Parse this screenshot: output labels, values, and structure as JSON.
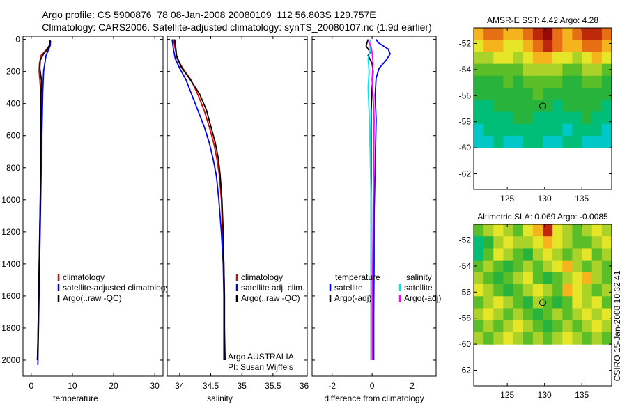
{
  "header": {
    "line1": "Argo profile: CS 5900876_78 08-Jan-2008 20080109_112 56.803S 129.757E",
    "line2": "Climatology: CARS2006. Satellite-adjusted climatology: synTS_20080107.nc (1.9d earlier)"
  },
  "colors": {
    "red": "#e00000",
    "blue": "#0000ff",
    "black": "#000000",
    "cyan": "#00e5ee",
    "magenta": "#ff00ff"
  },
  "chart_data": [
    {
      "id": "temp",
      "type": "line",
      "xlabel": "temperature",
      "ylabel": "",
      "xlim": [
        -2,
        32
      ],
      "ylim": [
        2100,
        -20
      ],
      "reverse_y": true,
      "xticks": [
        0,
        10,
        20,
        30
      ],
      "xtick_labels": [
        "0",
        "10",
        "20",
        "30"
      ],
      "yticks": [
        0,
        200,
        400,
        600,
        800,
        1000,
        1200,
        1400,
        1600,
        1800,
        2000
      ],
      "ytick_labels": [
        "0",
        "200",
        "400",
        "600",
        "800",
        "1000",
        "1200",
        "1400",
        "1600",
        "1800",
        "2000"
      ],
      "legend": [
        "climatology",
        "satellite-adjusted climatology",
        "Argo(..raw -QC)"
      ],
      "series": [
        {
          "name": "climatology",
          "color": "red",
          "points": [
            [
              4.5,
              10
            ],
            [
              4.4,
              40
            ],
            [
              3.5,
              70
            ],
            [
              2.4,
              100
            ],
            [
              2,
              150
            ],
            [
              1.9,
              200
            ],
            [
              2.1,
              250
            ],
            [
              2.3,
              330
            ],
            [
              2.4,
              450
            ],
            [
              2.3,
              700
            ],
            [
              2.2,
              1000
            ],
            [
              2.0,
              1300
            ],
            [
              1.8,
              1600
            ],
            [
              1.6,
              1900
            ],
            [
              1.5,
              2000
            ]
          ]
        },
        {
          "name": "satellite-adjusted climatology",
          "color": "blue",
          "points": [
            [
              4.7,
              10
            ],
            [
              4.6,
              40
            ],
            [
              4.1,
              70
            ],
            [
              3.6,
              100
            ],
            [
              3.3,
              150
            ],
            [
              3.0,
              200
            ],
            [
              2.9,
              260
            ],
            [
              2.8,
              330
            ],
            [
              2.7,
              450
            ],
            [
              2.5,
              700
            ],
            [
              2.3,
              1000
            ],
            [
              2.1,
              1300
            ],
            [
              1.9,
              1600
            ],
            [
              1.7,
              1900
            ],
            [
              1.6,
              2030
            ]
          ]
        },
        {
          "name": "Argo(..raw -QC)",
          "color": "black",
          "points": [
            [
              4.6,
              5
            ],
            [
              4.5,
              30
            ],
            [
              4.0,
              60
            ],
            [
              3.0,
              90
            ],
            [
              2.2,
              130
            ],
            [
              2.1,
              180
            ],
            [
              2.3,
              220
            ],
            [
              2.5,
              260
            ],
            [
              2.4,
              330
            ],
            [
              2.4,
              450
            ],
            [
              2.3,
              700
            ],
            [
              2.2,
              1000
            ],
            [
              2.0,
              1300
            ],
            [
              1.8,
              1600
            ],
            [
              1.6,
              1900
            ],
            [
              1.5,
              2000
            ]
          ]
        }
      ]
    },
    {
      "id": "sal",
      "type": "line",
      "xlabel": "salinity",
      "ylabel": "",
      "xlim": [
        33.8,
        36.05
      ],
      "ylim": [
        2100,
        -20
      ],
      "reverse_y": true,
      "xticks": [
        34,
        34.5,
        35,
        35.5,
        36
      ],
      "xtick_labels": [
        "34",
        "34.5",
        "35",
        "35.5",
        "36"
      ],
      "legend": [
        "climatology",
        "satellite adj. clim.",
        "Argo(..raw -QC)"
      ],
      "annotation": [
        "Argo AUSTRALIA",
        "PI: Susan Wijffels"
      ],
      "series": [
        {
          "name": "climatology",
          "color": "red",
          "points": [
            [
              33.9,
              0
            ],
            [
              33.93,
              60
            ],
            [
              33.96,
              120
            ],
            [
              34.05,
              180
            ],
            [
              34.18,
              250
            ],
            [
              34.3,
              350
            ],
            [
              34.4,
              450
            ],
            [
              34.48,
              550
            ],
            [
              34.55,
              650
            ],
            [
              34.6,
              750
            ],
            [
              34.64,
              850
            ],
            [
              34.67,
              1000
            ],
            [
              34.69,
              1200
            ],
            [
              34.71,
              1400
            ],
            [
              34.72,
              1600
            ],
            [
              34.72,
              1800
            ],
            [
              34.72,
              2000
            ]
          ]
        },
        {
          "name": "satellite adj. clim.",
          "color": "blue",
          "points": [
            [
              33.88,
              0
            ],
            [
              33.9,
              60
            ],
            [
              33.93,
              120
            ],
            [
              34.0,
              180
            ],
            [
              34.1,
              250
            ],
            [
              34.2,
              350
            ],
            [
              34.3,
              450
            ],
            [
              34.4,
              550
            ],
            [
              34.48,
              650
            ],
            [
              34.54,
              750
            ],
            [
              34.59,
              850
            ],
            [
              34.63,
              1000
            ],
            [
              34.67,
              1200
            ],
            [
              34.7,
              1400
            ],
            [
              34.71,
              1600
            ],
            [
              34.71,
              1800
            ],
            [
              34.71,
              2000
            ]
          ]
        },
        {
          "name": "Argo(..raw -QC)",
          "color": "black",
          "points": [
            [
              33.92,
              0
            ],
            [
              33.94,
              60
            ],
            [
              33.95,
              100
            ],
            [
              34.02,
              170
            ],
            [
              34.15,
              240
            ],
            [
              34.32,
              340
            ],
            [
              34.43,
              440
            ],
            [
              34.5,
              540
            ],
            [
              34.57,
              640
            ],
            [
              34.62,
              740
            ],
            [
              34.65,
              840
            ],
            [
              34.68,
              1000
            ],
            [
              34.7,
              1200
            ],
            [
              34.71,
              1400
            ],
            [
              34.72,
              1600
            ],
            [
              34.72,
              1800
            ],
            [
              34.73,
              2000
            ]
          ]
        }
      ]
    },
    {
      "id": "diff",
      "type": "line",
      "xlabel": "difference from climatology",
      "ylabel": "",
      "xlim": [
        -3,
        3.2
      ],
      "ylim": [
        2100,
        -20
      ],
      "reverse_y": true,
      "xticks": [
        -2,
        0,
        2
      ],
      "xtick_labels": [
        "-2",
        "0",
        "2"
      ],
      "legend_left": [
        "temperature",
        "satellite",
        "Argo(-adj)"
      ],
      "legend_right": [
        "salinity",
        "satellite",
        "Argo(-adj)"
      ],
      "series": [
        {
          "name": "temperature satellite",
          "color": "blue",
          "points": [
            [
              0.2,
              0
            ],
            [
              0.3,
              20
            ],
            [
              0.8,
              60
            ],
            [
              0.9,
              90
            ],
            [
              0.7,
              130
            ],
            [
              0.35,
              180
            ],
            [
              0.2,
              240
            ],
            [
              0.15,
              350
            ],
            [
              0.2,
              500
            ],
            [
              0.15,
              800
            ],
            [
              0.1,
              1100
            ],
            [
              0.1,
              1400
            ],
            [
              0.08,
              1700
            ],
            [
              0.08,
              2000
            ]
          ]
        },
        {
          "name": "temperature Argo(-adj)",
          "color": "black",
          "points": [
            [
              -0.2,
              0
            ],
            [
              -0.3,
              40
            ],
            [
              -0.1,
              80
            ],
            [
              -0.2,
              100
            ],
            [
              0.0,
              150
            ],
            [
              0.05,
              200
            ],
            [
              0.0,
              300
            ],
            [
              -0.05,
              450
            ],
            [
              -0.05,
              700
            ],
            [
              -0.05,
              1000
            ],
            [
              -0.05,
              1300
            ],
            [
              -0.05,
              1600
            ],
            [
              -0.05,
              1900
            ],
            [
              -0.05,
              2000
            ]
          ]
        },
        {
          "name": "salinity satellite",
          "color": "cyan",
          "points": [
            [
              -0.1,
              0
            ],
            [
              -0.1,
              60
            ],
            [
              -0.2,
              120
            ],
            [
              -0.15,
              200
            ],
            [
              -0.2,
              300
            ],
            [
              -0.15,
              450
            ],
            [
              -0.1,
              700
            ],
            [
              -0.05,
              1000
            ],
            [
              -0.05,
              1300
            ],
            [
              -0.02,
              1600
            ],
            [
              -0.02,
              2000
            ]
          ]
        },
        {
          "name": "salinity Argo(-adj)",
          "color": "magenta",
          "points": [
            [
              -0.2,
              10
            ],
            [
              -0.05,
              50
            ],
            [
              0.0,
              80
            ],
            [
              0.05,
              150
            ],
            [
              0.0,
              250
            ],
            [
              0.05,
              350
            ],
            [
              0.1,
              500
            ],
            [
              0.07,
              800
            ],
            [
              0.05,
              1100
            ],
            [
              0.03,
              1400
            ],
            [
              0.02,
              1700
            ],
            [
              0.02,
              2000
            ]
          ]
        }
      ]
    },
    {
      "id": "sst",
      "type": "heatmap",
      "title": "AMSR-E SST: 4.42 Argo: 4.28",
      "xlim": [
        120.5,
        139
      ],
      "ylim": [
        -63.2,
        -50.8
      ],
      "xticks": [
        125,
        130,
        135
      ],
      "xtick_labels": [
        "125",
        "130",
        "135"
      ],
      "yticks": [
        -52,
        -54,
        -56,
        -58,
        -60,
        -62
      ],
      "ytick_labels": [
        "-52",
        "-54",
        "-56",
        "-58",
        "-60",
        "-62"
      ],
      "data_lat_range": [
        -60,
        -50.8
      ],
      "float_position": [
        129.757,
        -56.803
      ],
      "grid": [
        [
          6,
          7,
          7,
          6,
          6,
          7,
          8,
          9,
          7,
          6,
          7,
          8,
          8,
          7
        ],
        [
          5,
          6,
          6,
          5,
          5,
          6,
          7,
          8,
          7,
          6,
          6,
          7,
          7,
          6
        ],
        [
          4,
          4,
          5,
          5,
          4,
          5,
          6,
          6,
          5,
          5,
          4,
          5,
          6,
          5
        ],
        [
          3,
          3,
          3,
          3,
          3,
          4,
          4,
          4,
          4,
          3,
          3,
          4,
          4,
          3
        ],
        [
          2,
          2,
          2,
          3,
          2,
          3,
          3,
          3,
          3,
          2,
          2,
          3,
          3,
          2
        ],
        [
          2,
          2,
          2,
          2,
          2,
          2,
          3,
          2,
          2,
          2,
          2,
          2,
          2,
          2
        ],
        [
          1,
          1,
          2,
          2,
          2,
          2,
          2,
          2,
          1,
          2,
          2,
          2,
          2,
          1
        ],
        [
          1,
          1,
          1,
          1,
          2,
          2,
          1,
          1,
          1,
          1,
          1,
          2,
          1,
          1
        ],
        [
          0,
          1,
          1,
          1,
          1,
          1,
          1,
          1,
          1,
          0,
          1,
          1,
          1,
          0
        ],
        [
          0,
          0,
          1,
          0,
          0,
          1,
          1,
          0,
          0,
          1,
          1,
          0,
          0,
          0
        ]
      ]
    },
    {
      "id": "sla",
      "type": "heatmap",
      "title": "Altimetric SLA: 0.069 Argo: -0.0085",
      "xlim": [
        120.5,
        139
      ],
      "ylim": [
        -63.2,
        -50.8
      ],
      "xticks": [
        125,
        130,
        135
      ],
      "xtick_labels": [
        "125",
        "130",
        "135"
      ],
      "yticks": [
        -52,
        -54,
        -56,
        -58,
        -60,
        -62
      ],
      "ytick_labels": [
        "-52",
        "-54",
        "-56",
        "-58",
        "-60",
        "-62"
      ],
      "data_lat_range": [
        -60,
        -50.8
      ],
      "float_position": [
        129.757,
        -56.803
      ],
      "grid": [
        [
          3,
          4,
          5,
          4,
          3,
          5,
          6,
          8,
          5,
          4,
          3,
          4,
          5,
          4
        ],
        [
          1,
          2,
          4,
          5,
          4,
          4,
          5,
          6,
          5,
          4,
          3,
          3,
          4,
          5
        ],
        [
          1,
          3,
          5,
          4,
          3,
          2,
          4,
          5,
          4,
          3,
          4,
          5,
          3,
          4
        ],
        [
          3,
          4,
          3,
          2,
          3,
          4,
          3,
          4,
          5,
          6,
          4,
          3,
          4,
          3
        ],
        [
          4,
          3,
          2,
          3,
          4,
          5,
          3,
          2,
          3,
          4,
          5,
          6,
          4,
          3
        ],
        [
          5,
          4,
          3,
          2,
          3,
          4,
          5,
          4,
          3,
          6,
          5,
          4,
          3,
          4
        ],
        [
          3,
          4,
          5,
          4,
          3,
          2,
          4,
          3,
          2,
          3,
          5,
          4,
          5,
          3
        ],
        [
          4,
          5,
          4,
          3,
          4,
          3,
          2,
          3,
          4,
          3,
          4,
          5,
          4,
          5
        ],
        [
          3,
          4,
          3,
          4,
          5,
          4,
          3,
          2,
          3,
          4,
          3,
          4,
          5,
          4
        ],
        [
          4,
          3,
          4,
          5,
          4,
          3,
          4,
          3,
          4,
          5,
          4,
          3,
          4,
          3
        ]
      ]
    }
  ],
  "footer_stamp": "CSIRO 15-Jan-2008 10:32:41"
}
